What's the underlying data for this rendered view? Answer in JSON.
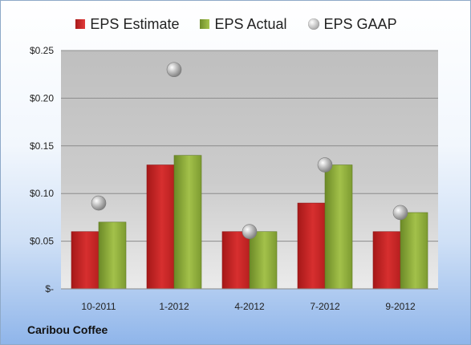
{
  "chart_data": {
    "type": "bar",
    "categories": [
      "10-2011",
      "1-2012",
      "4-2012",
      "7-2012",
      "9-2012"
    ],
    "series": [
      {
        "name": "EPS Estimate",
        "kind": "bar",
        "color": "#c42323",
        "values": [
          0.06,
          0.13,
          0.06,
          0.09,
          0.06
        ]
      },
      {
        "name": "EPS Actual",
        "kind": "bar",
        "color": "#8fae3c",
        "values": [
          0.07,
          0.14,
          0.06,
          0.13,
          0.08
        ]
      },
      {
        "name": "EPS GAAP",
        "kind": "marker",
        "color": "#b0b0b0",
        "values": [
          0.09,
          0.23,
          0.06,
          0.13,
          0.08
        ]
      }
    ],
    "yticks": [
      {
        "value": 0,
        "label": "$-"
      },
      {
        "value": 0.05,
        "label": "$0.05"
      },
      {
        "value": 0.1,
        "label": "$0.10"
      },
      {
        "value": 0.15,
        "label": "$0.15"
      },
      {
        "value": 0.2,
        "label": "$0.20"
      },
      {
        "value": 0.25,
        "label": "$0.25"
      }
    ],
    "ylim": [
      0,
      0.25
    ],
    "grid": true,
    "legend_position": "top",
    "title": "",
    "xlabel": "",
    "ylabel": ""
  },
  "legend": {
    "estimate_label": "EPS Estimate",
    "actual_label": "EPS Actual",
    "gaap_label": "EPS GAAP"
  },
  "footer": {
    "company": "Caribou Coffee"
  }
}
